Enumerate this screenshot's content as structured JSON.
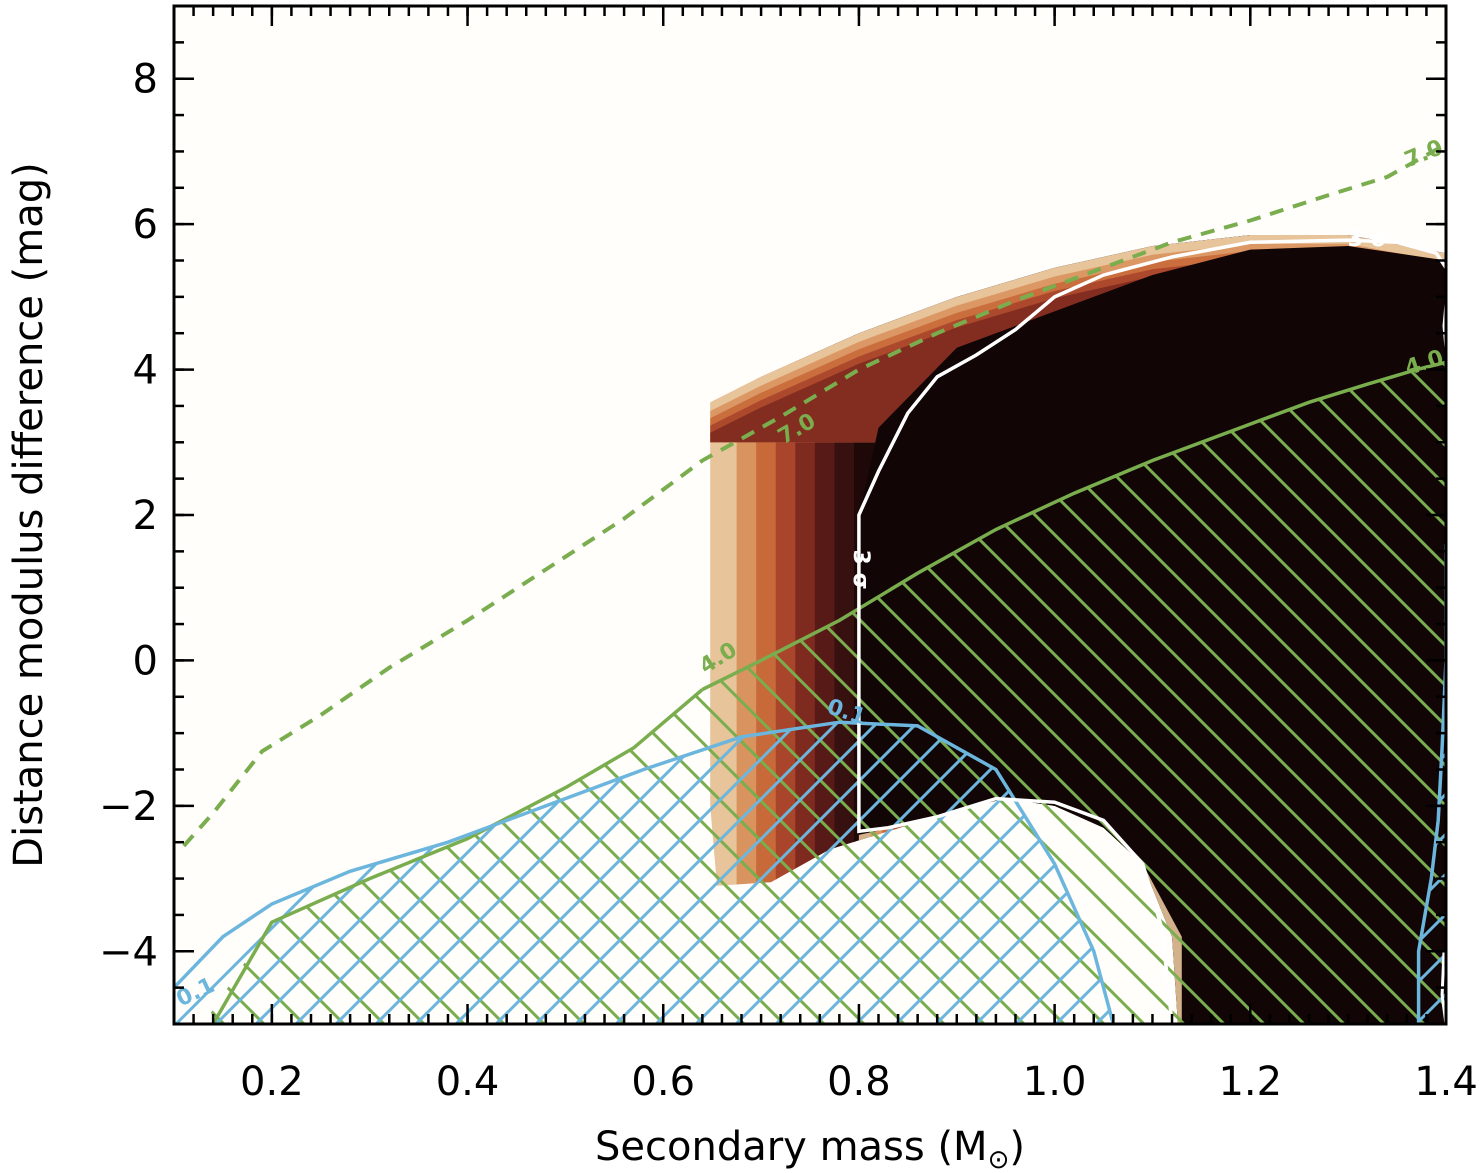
{
  "chart_data": {
    "type": "contour",
    "title": "",
    "xlabel": "Secondary mass (M",
    "xlabel_sub": "⊙",
    "xlabel_close": ")",
    "ylabel": "Distance modulus difference (mag)",
    "xlim": [
      0.1,
      1.4
    ],
    "ylim": [
      -5.0,
      9.0
    ],
    "x_ticks": [
      0.2,
      0.4,
      0.6,
      0.8,
      1.0,
      1.2,
      1.4
    ],
    "x_tick_labels": [
      "0.2",
      "0.4",
      "0.6",
      "0.8",
      "1.0",
      "1.2",
      "1.4"
    ],
    "y_ticks": [
      -4,
      -2,
      0,
      2,
      4,
      6,
      8
    ],
    "y_tick_labels": [
      "−4",
      "−2",
      "0",
      "2",
      "4",
      "6",
      "8"
    ],
    "colors": {
      "hatch_green": "#7aad4e",
      "hatch_blue": "#6cb6de",
      "dashed_green": "#7aad4e",
      "sigma_contour": "#ffffff",
      "fill_levels": [
        "#e8c49a",
        "#d9935e",
        "#c8693a",
        "#a8452b",
        "#7e2a1f",
        "#571a16",
        "#371010",
        "#1e0908",
        "#110505"
      ]
    },
    "sigma_label": "3 σ",
    "series": [
      {
        "label": "7.0",
        "style": "dashed",
        "x": [
          0.11,
          0.14,
          0.19,
          0.25,
          0.32,
          0.4,
          0.48,
          0.56,
          0.64,
          0.72,
          0.8,
          0.88,
          0.96,
          1.04,
          1.12,
          1.2,
          1.28,
          1.34,
          1.4
        ],
        "y": [
          -2.55,
          -2.1,
          -1.25,
          -0.75,
          -0.1,
          0.55,
          1.25,
          1.95,
          2.75,
          3.35,
          4.0,
          4.5,
          4.95,
          5.35,
          5.75,
          6.05,
          6.4,
          6.65,
          7.1
        ]
      },
      {
        "label": "4.0",
        "style": "hatched",
        "x": [
          0.64,
          0.7,
          0.78,
          0.86,
          0.94,
          1.02,
          1.1,
          1.18,
          1.26,
          1.32,
          1.37,
          1.4
        ],
        "y": [
          -0.4,
          0.0,
          0.55,
          1.2,
          1.8,
          2.3,
          2.75,
          3.15,
          3.55,
          3.8,
          4.0,
          4.1
        ]
      },
      {
        "label": "0.1",
        "style": "hatched",
        "x": [
          0.1,
          0.15,
          0.2,
          0.28,
          0.38,
          0.48,
          0.58,
          0.68,
          0.78,
          0.86,
          0.94,
          1.0,
          1.04,
          1.06
        ],
        "y": [
          -4.5,
          -3.8,
          -3.35,
          -2.9,
          -2.5,
          -2.0,
          -1.5,
          -1.05,
          -0.85,
          -0.9,
          -1.5,
          -2.8,
          -4.0,
          -5.0
        ]
      }
    ]
  }
}
